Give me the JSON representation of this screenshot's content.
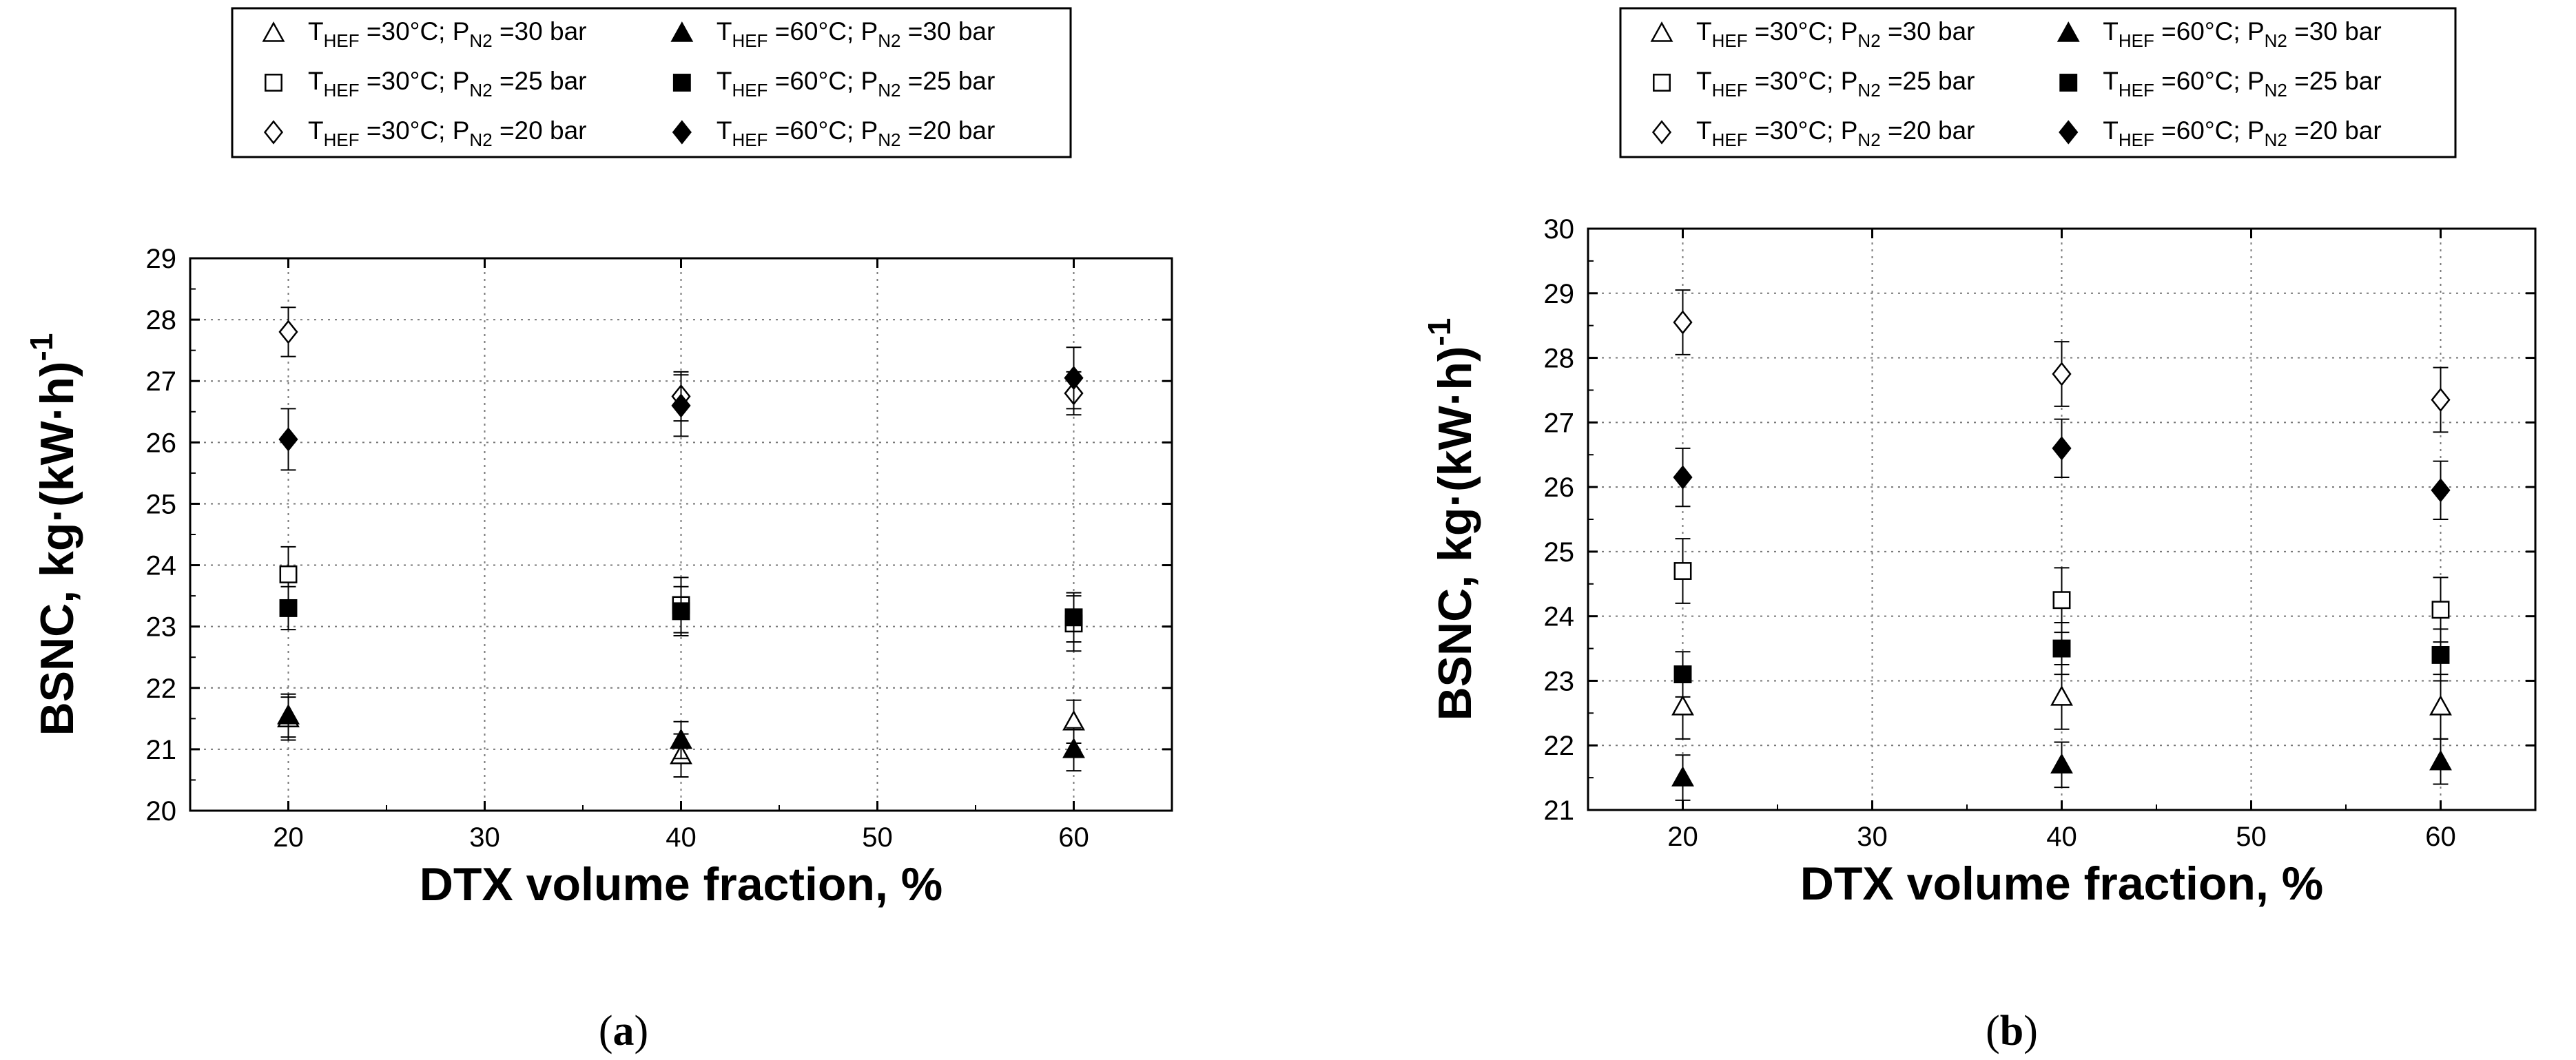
{
  "chart_data": [
    {
      "type": "scatter",
      "panel_label": "(a)",
      "panel_letter": "a",
      "title": "",
      "xlabel": "DTX volume fraction, %",
      "ylabel": "BSNC, kg·(kW·h)",
      "ylabel_sup": "-1",
      "xlim": [
        15,
        65
      ],
      "ylim": [
        20,
        29
      ],
      "xticks": [
        20,
        30,
        40,
        50,
        60
      ],
      "yticks": [
        20,
        21,
        22,
        23,
        24,
        25,
        26,
        27,
        28,
        29
      ],
      "grid": true,
      "error_bars": true,
      "legend_position": "top",
      "x": [
        20,
        40,
        60
      ],
      "series": [
        {
          "name": "T_HEF =30°C; P_N2 =30 bar",
          "t": "30",
          "p": "30",
          "marker": "triangle-open",
          "values": [
            21.5,
            20.9,
            21.45
          ],
          "errors": [
            0.35,
            0.35,
            0.35
          ]
        },
        {
          "name": "T_HEF =30°C; P_N2 =25 bar",
          "t": "30",
          "p": "25",
          "marker": "square-open",
          "values": [
            23.85,
            23.35,
            23.05
          ],
          "errors": [
            0.45,
            0.45,
            0.45
          ]
        },
        {
          "name": "T_HEF =30°C; P_N2 =20 bar",
          "t": "30",
          "p": "20",
          "marker": "diamond-open",
          "values": [
            27.8,
            26.75,
            26.8
          ],
          "errors": [
            0.4,
            0.4,
            0.35
          ]
        },
        {
          "name": "T_HEF =60°C; P_N2 =30 bar",
          "t": "60",
          "p": "30",
          "marker": "triangle-filled",
          "values": [
            21.55,
            21.15,
            21.0
          ],
          "errors": [
            0.35,
            0.3,
            0.35
          ]
        },
        {
          "name": "T_HEF =60°C; P_N2 =25 bar",
          "t": "60",
          "p": "25",
          "marker": "square-filled",
          "values": [
            23.3,
            23.25,
            23.15
          ],
          "errors": [
            0.35,
            0.4,
            0.4
          ]
        },
        {
          "name": "T_HEF =60°C; P_N2 =20 bar",
          "t": "60",
          "p": "20",
          "marker": "diamond-filled",
          "values": [
            26.05,
            26.6,
            27.05
          ],
          "errors": [
            0.5,
            0.5,
            0.5
          ]
        }
      ]
    },
    {
      "type": "scatter",
      "panel_label": "(b)",
      "panel_letter": "b",
      "title": "",
      "xlabel": "DTX volume fraction, %",
      "ylabel": "BSNC, kg·(kW·h)",
      "ylabel_sup": "-1",
      "xlim": [
        15,
        65
      ],
      "ylim": [
        21,
        30
      ],
      "xticks": [
        20,
        30,
        40,
        50,
        60
      ],
      "yticks": [
        21,
        22,
        23,
        24,
        25,
        26,
        27,
        28,
        29,
        30
      ],
      "grid": true,
      "error_bars": true,
      "legend_position": "top",
      "x": [
        20,
        40,
        60
      ],
      "series": [
        {
          "name": "T_HEF =30°C; P_N2 =30 bar",
          "t": "30",
          "p": "30",
          "marker": "triangle-open",
          "values": [
            22.6,
            22.75,
            22.6
          ],
          "errors": [
            0.5,
            0.5,
            0.5
          ]
        },
        {
          "name": "T_HEF =30°C; P_N2 =25 bar",
          "t": "30",
          "p": "25",
          "marker": "square-open",
          "values": [
            24.7,
            24.25,
            24.1
          ],
          "errors": [
            0.5,
            0.5,
            0.5
          ]
        },
        {
          "name": "T_HEF =30°C; P_N2 =20 bar",
          "t": "30",
          "p": "20",
          "marker": "diamond-open",
          "values": [
            28.55,
            27.75,
            27.35
          ],
          "errors": [
            0.5,
            0.5,
            0.5
          ]
        },
        {
          "name": "T_HEF =60°C; P_N2 =30 bar",
          "t": "60",
          "p": "30",
          "marker": "triangle-filled",
          "values": [
            21.5,
            21.7,
            21.75
          ],
          "errors": [
            0.35,
            0.35,
            0.35
          ]
        },
        {
          "name": "T_HEF =60°C; P_N2 =25 bar",
          "t": "60",
          "p": "25",
          "marker": "square-filled",
          "values": [
            23.1,
            23.5,
            23.4
          ],
          "errors": [
            0.35,
            0.4,
            0.4
          ]
        },
        {
          "name": "T_HEF =60°C; P_N2 =20 bar",
          "t": "60",
          "p": "20",
          "marker": "diamond-filled",
          "values": [
            26.15,
            26.6,
            25.95
          ],
          "errors": [
            0.45,
            0.45,
            0.45
          ]
        }
      ]
    }
  ]
}
